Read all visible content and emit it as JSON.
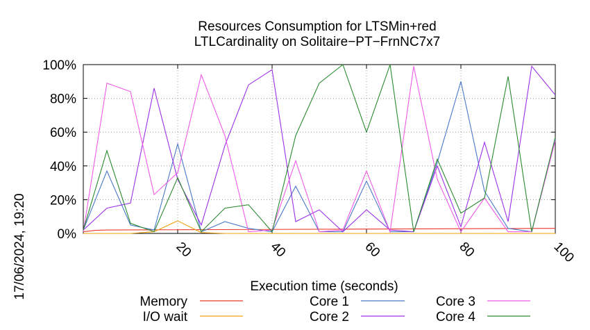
{
  "chart_data": {
    "type": "line",
    "title": "Resources Consumption for LTSMin+red",
    "subtitle": "LTLCardinality on Solitaire−PT−FrnNC7x7",
    "xlabel": "Execution time (seconds)",
    "ylabel": "",
    "timestamp": "17/06/2024, 19:20",
    "xlim": [
      0,
      100
    ],
    "ylim": [
      0,
      100
    ],
    "x_ticks": [
      20,
      40,
      60,
      80,
      100
    ],
    "x_tick_labels": [
      "20",
      "40",
      "60",
      "80",
      "100"
    ],
    "y_ticks": [
      0,
      20,
      40,
      60,
      80,
      100
    ],
    "y_tick_labels": [
      "0%",
      "20%",
      "40%",
      "60%",
      "80%",
      "100%"
    ],
    "grid": true,
    "legend_position": "bottom",
    "series": [
      {
        "name": "Memory",
        "color": "#e8382b",
        "x": [
          0,
          2.5,
          5,
          100
        ],
        "y": [
          1,
          1.8,
          2,
          3
        ]
      },
      {
        "name": "I/O wait",
        "color": "#f4a00a",
        "x": [
          0,
          5,
          10,
          15,
          20,
          25,
          30,
          35,
          40,
          45,
          50,
          55,
          60,
          65,
          70,
          75,
          80,
          85,
          90,
          95,
          100
        ],
        "y": [
          0,
          0,
          0,
          1,
          7.5,
          0.5,
          0,
          0,
          0,
          0,
          0,
          0,
          0,
          0,
          0,
          0,
          0,
          0,
          0,
          0,
          0
        ]
      },
      {
        "name": "Core 1",
        "color": "#4a78c8",
        "x": [
          0,
          5,
          10,
          15,
          20,
          25,
          30,
          35,
          40,
          45,
          50,
          55,
          60,
          65,
          70,
          75,
          80,
          85,
          90,
          95,
          100
        ],
        "y": [
          2,
          37,
          5,
          2,
          53,
          1,
          7,
          3,
          1,
          28,
          1,
          1,
          31,
          1,
          1,
          42,
          90,
          25,
          3,
          1,
          56
        ]
      },
      {
        "name": "Core 2",
        "color": "#9b30e8",
        "x": [
          0,
          5,
          10,
          15,
          20,
          25,
          30,
          35,
          40,
          45,
          50,
          55,
          60,
          65,
          70,
          75,
          80,
          85,
          90,
          95,
          100
        ],
        "y": [
          2,
          15,
          18,
          86,
          32,
          5,
          52,
          88,
          97,
          7,
          14,
          1,
          14,
          2,
          1,
          40,
          4,
          54,
          7,
          99,
          82
        ]
      },
      {
        "name": "Core 3",
        "color": "#f05ae8",
        "x": [
          0,
          5,
          10,
          15,
          20,
          25,
          30,
          35,
          40,
          45,
          50,
          55,
          60,
          65,
          70,
          75,
          80,
          85,
          90,
          95,
          100
        ],
        "y": [
          1,
          89,
          84,
          23,
          36,
          94,
          58,
          1,
          2,
          43,
          1,
          2,
          37,
          1,
          99,
          32,
          1,
          21,
          1,
          1,
          55
        ]
      },
      {
        "name": "Core 4",
        "color": "#2a8a30",
        "x": [
          0,
          5,
          10,
          15,
          20,
          25,
          30,
          35,
          40,
          45,
          50,
          55,
          60,
          65,
          70,
          75,
          80,
          85,
          90,
          95,
          100
        ],
        "y": [
          2,
          49,
          6,
          1,
          33,
          1,
          15,
          17,
          1,
          58,
          89,
          100,
          60,
          100,
          1,
          44,
          12,
          21,
          93,
          1,
          57
        ]
      }
    ]
  }
}
